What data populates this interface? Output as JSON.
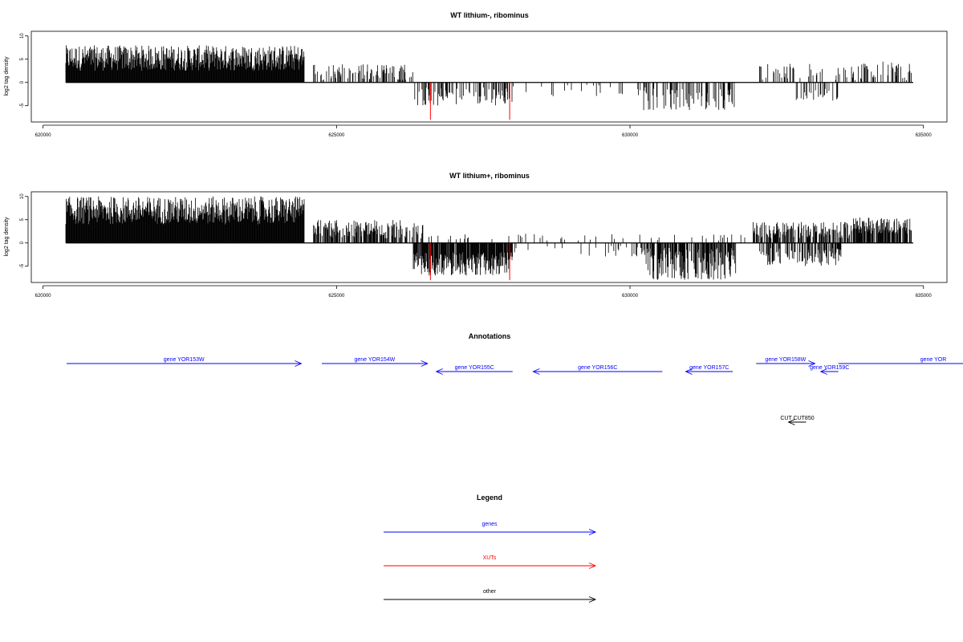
{
  "colors": {
    "genes": "#0000ff",
    "xuts": "#ff0000",
    "other": "#000000",
    "bars": "#000000",
    "xut_marks": "#ff0000"
  },
  "chart_data": [
    {
      "type": "bar",
      "title": "WT lithium-, ribominus",
      "ylabel": "log2 tag density",
      "xlim": [
        619800,
        635400
      ],
      "ylim": [
        -8.5,
        11
      ],
      "x_ticks": [
        620000,
        625000,
        630000,
        635000
      ],
      "x_tick_labels": [
        "620000",
        "625000",
        "630000",
        "635000"
      ],
      "y_ticks": [
        10,
        5,
        0,
        -5
      ],
      "y_tick_labels": [
        "10",
        "5",
        "0",
        "-5"
      ],
      "grid": false,
      "series": [
        {
          "strand": "plus",
          "segments": [
            {
              "x0": 619800,
              "x1": 624450,
              "min": 2.5,
              "max": 8,
              "density": 1.3
            },
            {
              "x0": 624600,
              "x1": 626300,
              "min": 0.5,
              "max": 4,
              "density": 0.35
            },
            {
              "x0": 632200,
              "x1": 633800,
              "min": 0.5,
              "max": 4,
              "density": 0.25
            },
            {
              "x0": 633800,
              "x1": 634800,
              "min": 0.5,
              "max": 4.5,
              "density": 0.25
            }
          ]
        },
        {
          "strand": "minus",
          "segments": [
            {
              "x0": 626300,
              "x1": 628000,
              "min": 1,
              "max": 5,
              "density": 0.35
            },
            {
              "x0": 628000,
              "x1": 630200,
              "min": 0.5,
              "max": 3,
              "density": 0.08
            },
            {
              "x0": 630200,
              "x1": 631800,
              "min": 1,
              "max": 6,
              "density": 0.35
            },
            {
              "x0": 632800,
              "x1": 633600,
              "min": 1,
              "max": 4,
              "density": 0.3
            }
          ]
        }
      ],
      "xut_marks": [
        {
          "x": 626600,
          "y": -8
        },
        {
          "x": 627950,
          "y": -8
        }
      ]
    },
    {
      "type": "bar",
      "title": "WT lithium+, ribominus",
      "ylabel": "log2 tag density",
      "xlim": [
        619800,
        635400
      ],
      "ylim": [
        -8.5,
        11
      ],
      "x_ticks": [
        620000,
        625000,
        630000,
        635000
      ],
      "x_tick_labels": [
        "620000",
        "625000",
        "630000",
        "635000"
      ],
      "y_ticks": [
        10,
        5,
        0,
        -5
      ],
      "y_tick_labels": [
        "10",
        "5",
        "0",
        "-5"
      ],
      "grid": false,
      "series": [
        {
          "strand": "plus",
          "segments": [
            {
              "x0": 619800,
              "x1": 624450,
              "min": 4,
              "max": 10,
              "density": 1.6
            },
            {
              "x0": 624600,
              "x1": 626500,
              "min": 1,
              "max": 5,
              "density": 0.6
            },
            {
              "x0": 626500,
              "x1": 632100,
              "min": 0.5,
              "max": 2,
              "density": 0.06
            },
            {
              "x0": 632100,
              "x1": 633800,
              "min": 1,
              "max": 4.5,
              "density": 0.6
            },
            {
              "x0": 633800,
              "x1": 634800,
              "min": 2,
              "max": 5.5,
              "density": 0.8
            }
          ]
        },
        {
          "strand": "minus",
          "segments": [
            {
              "x0": 626300,
              "x1": 628000,
              "min": 2,
              "max": 7,
              "density": 0.9
            },
            {
              "x0": 628000,
              "x1": 630200,
              "min": 0.5,
              "max": 3,
              "density": 0.1
            },
            {
              "x0": 630200,
              "x1": 631800,
              "min": 1,
              "max": 8,
              "density": 0.7
            },
            {
              "x0": 632200,
              "x1": 633600,
              "min": 1,
              "max": 5,
              "density": 0.5
            }
          ]
        }
      ],
      "xut_marks": [
        {
          "x": 626600,
          "y": -8
        },
        {
          "x": 627950,
          "y": -8
        }
      ]
    }
  ],
  "annotations": {
    "title": "Annotations",
    "features": [
      {
        "label": "gene YOR153W",
        "start": 619800,
        "end": 624400,
        "strand": "+",
        "row": 1,
        "kind": "genes"
      },
      {
        "label": "gene YOR154W",
        "start": 624750,
        "end": 626550,
        "strand": "+",
        "row": 1,
        "kind": "genes"
      },
      {
        "label": "gene YOR155C",
        "start": 626700,
        "end": 628000,
        "strand": "-",
        "row": 2,
        "kind": "genes"
      },
      {
        "label": "gene YOR156C",
        "start": 628350,
        "end": 630550,
        "strand": "-",
        "row": 2,
        "kind": "genes"
      },
      {
        "label": "gene YOR157C",
        "start": 630950,
        "end": 631750,
        "strand": "-",
        "row": 2,
        "kind": "genes"
      },
      {
        "label": "gene YOR158W",
        "start": 632150,
        "end": 633150,
        "strand": "+",
        "row": 1,
        "kind": "genes"
      },
      {
        "label": "gene YOR159C",
        "start": 633250,
        "end": 633550,
        "strand": "-",
        "row": 2,
        "kind": "genes"
      },
      {
        "label": "gene YOR",
        "start": 633550,
        "end": 635400,
        "strand": "+",
        "row": 1,
        "kind": "genes"
      },
      {
        "label": "CUT CUT850",
        "start": 632700,
        "end": 633000,
        "strand": "-",
        "row": 3,
        "kind": "other"
      }
    ]
  },
  "legend": {
    "title": "Legend",
    "entries": [
      {
        "label": "genes",
        "kind": "genes"
      },
      {
        "label": "XUTs",
        "kind": "xuts"
      },
      {
        "label": "other",
        "kind": "other"
      }
    ]
  }
}
